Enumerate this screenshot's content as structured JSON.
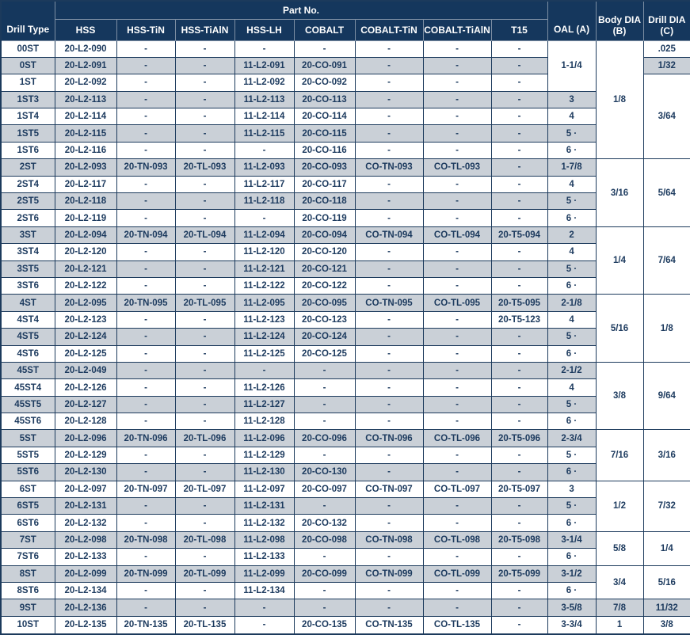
{
  "table": {
    "colors": {
      "header_bg": "#15375d",
      "border": "#1c3a5c",
      "stripe": "#cad0d7",
      "text": "#1c3a5e"
    },
    "header": {
      "drill_type": "Drill Type",
      "part_no_group": "Part No.",
      "part_columns": [
        "HSS",
        "HSS-TiN",
        "HSS-TiAlN",
        "HSS-LH",
        "COBALT",
        "COBALT-TiN",
        "COBALT-TiAlN",
        "T15"
      ],
      "oal": "OAL (A)",
      "body_dia_line1": "Body DIA",
      "body_dia_line2": "(B)",
      "drill_dia_line1": "Drill DIA",
      "drill_dia_line2": "(C)"
    },
    "rows": [
      {
        "type": "00ST",
        "parts": [
          "20-L2-090",
          "-",
          "-",
          "-",
          "-",
          "-",
          "-",
          "-"
        ],
        "oal": {
          "value": "1-1/4",
          "rowspan": 3
        },
        "body_dia": {
          "value": "1/8",
          "rowspan": 7
        },
        "drill_dia": {
          "value": ".025",
          "rowspan": 1
        }
      },
      {
        "type": "0ST",
        "parts": [
          "20-L2-091",
          "-",
          "-",
          "11-L2-091",
          "20-CO-091",
          "-",
          "-",
          "-"
        ],
        "drill_dia": {
          "value": "1/32",
          "rowspan": 1
        }
      },
      {
        "type": "1ST",
        "parts": [
          "20-L2-092",
          "-",
          "-",
          "11-L2-092",
          "20-CO-092",
          "-",
          "-",
          "-"
        ],
        "drill_dia": {
          "value": "3/64",
          "rowspan": 5
        }
      },
      {
        "type": "1ST3",
        "parts": [
          "20-L2-113",
          "-",
          "-",
          "11-L2-113",
          "20-CO-113",
          "-",
          "-",
          "-"
        ],
        "oal": {
          "value": "3",
          "rowspan": 1
        }
      },
      {
        "type": "1ST4",
        "parts": [
          "20-L2-114",
          "-",
          "-",
          "11-L2-114",
          "20-CO-114",
          "-",
          "-",
          "-"
        ],
        "oal": {
          "value": "4",
          "rowspan": 1
        }
      },
      {
        "type": "1ST5",
        "parts": [
          "20-L2-115",
          "-",
          "-",
          "11-L2-115",
          "20-CO-115",
          "-",
          "-",
          "-"
        ],
        "oal": {
          "value": "5 ·",
          "rowspan": 1
        }
      },
      {
        "type": "1ST6",
        "parts": [
          "20-L2-116",
          "-",
          "-",
          "-",
          "20-CO-116",
          "-",
          "-",
          "-"
        ],
        "oal": {
          "value": "6 ·",
          "rowspan": 1
        }
      },
      {
        "type": "2ST",
        "parts": [
          "20-L2-093",
          "20-TN-093",
          "20-TL-093",
          "11-L2-093",
          "20-CO-093",
          "CO-TN-093",
          "CO-TL-093",
          "-"
        ],
        "oal": {
          "value": "1-7/8",
          "rowspan": 1
        },
        "body_dia": {
          "value": "3/16",
          "rowspan": 4
        },
        "drill_dia": {
          "value": "5/64",
          "rowspan": 4
        }
      },
      {
        "type": "2ST4",
        "parts": [
          "20-L2-117",
          "-",
          "-",
          "11-L2-117",
          "20-CO-117",
          "-",
          "-",
          "-"
        ],
        "oal": {
          "value": "4",
          "rowspan": 1
        }
      },
      {
        "type": "2ST5",
        "parts": [
          "20-L2-118",
          "-",
          "-",
          "11-L2-118",
          "20-CO-118",
          "-",
          "-",
          "-"
        ],
        "oal": {
          "value": "5 ·",
          "rowspan": 1
        }
      },
      {
        "type": "2ST6",
        "parts": [
          "20-L2-119",
          "-",
          "-",
          "-",
          "20-CO-119",
          "-",
          "-",
          "-"
        ],
        "oal": {
          "value": "6 ·",
          "rowspan": 1
        }
      },
      {
        "type": "3ST",
        "parts": [
          "20-L2-094",
          "20-TN-094",
          "20-TL-094",
          "11-L2-094",
          "20-CO-094",
          "CO-TN-094",
          "CO-TL-094",
          "20-T5-094"
        ],
        "oal": {
          "value": "2",
          "rowspan": 1
        },
        "body_dia": {
          "value": "1/4",
          "rowspan": 4
        },
        "drill_dia": {
          "value": "7/64",
          "rowspan": 4
        }
      },
      {
        "type": "3ST4",
        "parts": [
          "20-L2-120",
          "-",
          "-",
          "11-L2-120",
          "20-CO-120",
          "-",
          "-",
          "-"
        ],
        "oal": {
          "value": "4",
          "rowspan": 1
        }
      },
      {
        "type": "3ST5",
        "parts": [
          "20-L2-121",
          "-",
          "-",
          "11-L2-121",
          "20-CO-121",
          "-",
          "-",
          "-"
        ],
        "oal": {
          "value": "5 ·",
          "rowspan": 1
        }
      },
      {
        "type": "3ST6",
        "parts": [
          "20-L2-122",
          "-",
          "-",
          "11-L2-122",
          "20-CO-122",
          "-",
          "-",
          "-"
        ],
        "oal": {
          "value": "6 ·",
          "rowspan": 1
        }
      },
      {
        "type": "4ST",
        "parts": [
          "20-L2-095",
          "20-TN-095",
          "20-TL-095",
          "11-L2-095",
          "20-CO-095",
          "CO-TN-095",
          "CO-TL-095",
          "20-T5-095"
        ],
        "oal": {
          "value": "2-1/8",
          "rowspan": 1
        },
        "body_dia": {
          "value": "5/16",
          "rowspan": 4
        },
        "drill_dia": {
          "value": "1/8",
          "rowspan": 4
        }
      },
      {
        "type": "4ST4",
        "parts": [
          "20-L2-123",
          "-",
          "-",
          "11-L2-123",
          "20-CO-123",
          "-",
          "-",
          "20-T5-123"
        ],
        "oal": {
          "value": "4",
          "rowspan": 1
        }
      },
      {
        "type": "4ST5",
        "parts": [
          "20-L2-124",
          "-",
          "-",
          "11-L2-124",
          "20-CO-124",
          "-",
          "-",
          "-"
        ],
        "oal": {
          "value": "5 ·",
          "rowspan": 1
        }
      },
      {
        "type": "4ST6",
        "parts": [
          "20-L2-125",
          "-",
          "-",
          "11-L2-125",
          "20-CO-125",
          "-",
          "-",
          "-"
        ],
        "oal": {
          "value": "6 ·",
          "rowspan": 1
        }
      },
      {
        "type": "45ST",
        "parts": [
          "20-L2-049",
          "-",
          "-",
          "-",
          "-",
          "-",
          "-",
          "-"
        ],
        "oal": {
          "value": "2-1/2",
          "rowspan": 1
        },
        "body_dia": {
          "value": "3/8",
          "rowspan": 4
        },
        "drill_dia": {
          "value": "9/64",
          "rowspan": 4
        }
      },
      {
        "type": "45ST4",
        "parts": [
          "20-L2-126",
          "-",
          "-",
          "11-L2-126",
          "-",
          "-",
          "-",
          "-"
        ],
        "oal": {
          "value": "4",
          "rowspan": 1
        }
      },
      {
        "type": "45ST5",
        "parts": [
          "20-L2-127",
          "-",
          "-",
          "11-L2-127",
          "-",
          "-",
          "-",
          "-"
        ],
        "oal": {
          "value": "5 ·",
          "rowspan": 1
        }
      },
      {
        "type": "45ST6",
        "parts": [
          "20-L2-128",
          "-",
          "-",
          "11-L2-128",
          "-",
          "-",
          "-",
          "-"
        ],
        "oal": {
          "value": "6 ·",
          "rowspan": 1
        }
      },
      {
        "type": "5ST",
        "parts": [
          "20-L2-096",
          "20-TN-096",
          "20-TL-096",
          "11-L2-096",
          "20-CO-096",
          "CO-TN-096",
          "CO-TL-096",
          "20-T5-096"
        ],
        "oal": {
          "value": "2-3/4",
          "rowspan": 1
        },
        "body_dia": {
          "value": "7/16",
          "rowspan": 3
        },
        "drill_dia": {
          "value": "3/16",
          "rowspan": 3
        }
      },
      {
        "type": "5ST5",
        "parts": [
          "20-L2-129",
          "-",
          "-",
          "11-L2-129",
          "-",
          "-",
          "-",
          "-"
        ],
        "oal": {
          "value": "5 ·",
          "rowspan": 1
        }
      },
      {
        "type": "5ST6",
        "parts": [
          "20-L2-130",
          "-",
          "-",
          "11-L2-130",
          "20-CO-130",
          "-",
          "-",
          "-"
        ],
        "oal": {
          "value": "6 ·",
          "rowspan": 1
        }
      },
      {
        "type": "6ST",
        "parts": [
          "20-L2-097",
          "20-TN-097",
          "20-TL-097",
          "11-L2-097",
          "20-CO-097",
          "CO-TN-097",
          "CO-TL-097",
          "20-T5-097"
        ],
        "oal": {
          "value": "3",
          "rowspan": 1
        },
        "body_dia": {
          "value": "1/2",
          "rowspan": 3
        },
        "drill_dia": {
          "value": "7/32",
          "rowspan": 3
        }
      },
      {
        "type": "6ST5",
        "parts": [
          "20-L2-131",
          "-",
          "-",
          "11-L2-131",
          "-",
          "-",
          "-",
          "-"
        ],
        "oal": {
          "value": "5 ·",
          "rowspan": 1
        }
      },
      {
        "type": "6ST6",
        "parts": [
          "20-L2-132",
          "-",
          "-",
          "11-L2-132",
          "20-CO-132",
          "-",
          "-",
          "-"
        ],
        "oal": {
          "value": "6 ·",
          "rowspan": 1
        }
      },
      {
        "type": "7ST",
        "parts": [
          "20-L2-098",
          "20-TN-098",
          "20-TL-098",
          "11-L2-098",
          "20-CO-098",
          "CO-TN-098",
          "CO-TL-098",
          "20-T5-098"
        ],
        "oal": {
          "value": "3-1/4",
          "rowspan": 1
        },
        "body_dia": {
          "value": "5/8",
          "rowspan": 2
        },
        "drill_dia": {
          "value": "1/4",
          "rowspan": 2
        }
      },
      {
        "type": "7ST6",
        "parts": [
          "20-L2-133",
          "-",
          "-",
          "11-L2-133",
          "-",
          "-",
          "-",
          "-"
        ],
        "oal": {
          "value": "6 ·",
          "rowspan": 1
        }
      },
      {
        "type": "8ST",
        "parts": [
          "20-L2-099",
          "20-TN-099",
          "20-TL-099",
          "11-L2-099",
          "20-CO-099",
          "CO-TN-099",
          "CO-TL-099",
          "20-T5-099"
        ],
        "oal": {
          "value": "3-1/2",
          "rowspan": 1
        },
        "body_dia": {
          "value": "3/4",
          "rowspan": 2
        },
        "drill_dia": {
          "value": "5/16",
          "rowspan": 2
        }
      },
      {
        "type": "8ST6",
        "parts": [
          "20-L2-134",
          "-",
          "-",
          "11-L2-134",
          "-",
          "-",
          "-",
          "-"
        ],
        "oal": {
          "value": "6 ·",
          "rowspan": 1
        }
      },
      {
        "type": "9ST",
        "parts": [
          "20-L2-136",
          "-",
          "-",
          "-",
          "-",
          "-",
          "-",
          "-"
        ],
        "oal": {
          "value": "3-5/8",
          "rowspan": 1
        },
        "body_dia": {
          "value": "7/8",
          "rowspan": 1
        },
        "drill_dia": {
          "value": "11/32",
          "rowspan": 1
        }
      },
      {
        "type": "10ST",
        "parts": [
          "20-L2-135",
          "20-TN-135",
          "20-TL-135",
          "-",
          "20-CO-135",
          "CO-TN-135",
          "CO-TL-135",
          "-"
        ],
        "oal": {
          "value": "3-3/4",
          "rowspan": 1
        },
        "body_dia": {
          "value": "1",
          "rowspan": 1
        },
        "drill_dia": {
          "value": "3/8",
          "rowspan": 1
        }
      }
    ]
  }
}
